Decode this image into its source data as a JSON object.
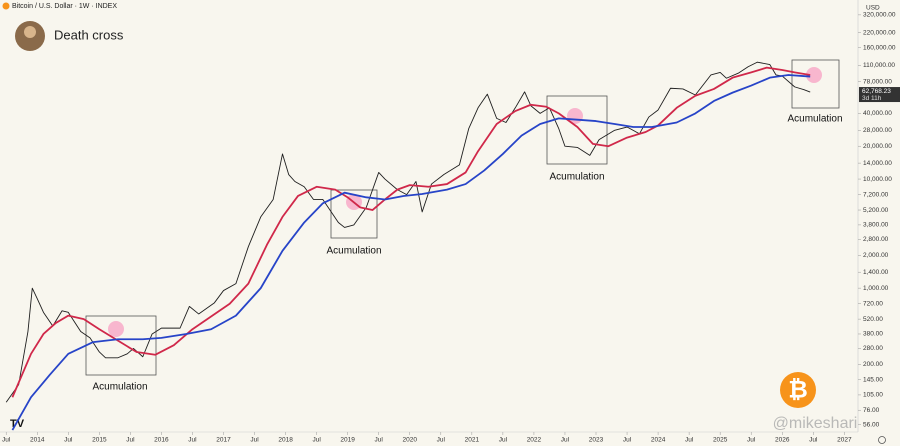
{
  "header": "Bitcoin / U.S. Dollar · 1W · INDEX",
  "chart_data": {
    "type": "line",
    "title": "Death cross",
    "log_scale": true,
    "grid": false,
    "currency": "USD",
    "last_price_label": "62,768.23",
    "countdown": "3d 11h",
    "watermark": "@mikeshari",
    "annotations": [
      "Acumulation",
      "Acumulation",
      "Acumulation",
      "Acumulation"
    ],
    "xlim": [
      2013.4,
      2027.22
    ],
    "ylim": [
      48,
      438000
    ],
    "xticks": [
      {
        "value": 2013.5,
        "label": "Jul"
      },
      {
        "value": 2014,
        "label": "2014"
      },
      {
        "value": 2014.5,
        "label": "Jul"
      },
      {
        "value": 2015,
        "label": "2015"
      },
      {
        "value": 2015.5,
        "label": "Jul"
      },
      {
        "value": 2016,
        "label": "2016"
      },
      {
        "value": 2016.5,
        "label": "Jul"
      },
      {
        "value": 2017,
        "label": "2017"
      },
      {
        "value": 2017.5,
        "label": "Jul"
      },
      {
        "value": 2018,
        "label": "2018"
      },
      {
        "value": 2018.5,
        "label": "Jul"
      },
      {
        "value": 2019,
        "label": "2019"
      },
      {
        "value": 2019.5,
        "label": "Jul"
      },
      {
        "value": 2020,
        "label": "2020"
      },
      {
        "value": 2020.5,
        "label": "Jul"
      },
      {
        "value": 2021,
        "label": "2021"
      },
      {
        "value": 2021.5,
        "label": "Jul"
      },
      {
        "value": 2022,
        "label": "2022"
      },
      {
        "value": 2022.5,
        "label": "Jul"
      },
      {
        "value": 2023,
        "label": "2023"
      },
      {
        "value": 2023.5,
        "label": "Jul"
      },
      {
        "value": 2024,
        "label": "2024"
      },
      {
        "value": 2024.5,
        "label": "Jul"
      },
      {
        "value": 2025,
        "label": "2025"
      },
      {
        "value": 2025.5,
        "label": "Jul"
      },
      {
        "value": 2026,
        "label": "2026"
      },
      {
        "value": 2026.5,
        "label": "Jul"
      },
      {
        "value": 2027,
        "label": "2027"
      }
    ],
    "yticks": [
      {
        "value": 320000,
        "label": "320,000.00"
      },
      {
        "value": 220000,
        "label": "220,000.00"
      },
      {
        "value": 160000,
        "label": "160,000.00"
      },
      {
        "value": 110000,
        "label": "110,000.00"
      },
      {
        "value": 78000,
        "label": "78,000.00"
      },
      {
        "value": 40000,
        "label": "40,000.00"
      },
      {
        "value": 28000,
        "label": "28,000.00"
      },
      {
        "value": 20000,
        "label": "20,000.00"
      },
      {
        "value": 14000,
        "label": "14,000.00"
      },
      {
        "value": 10000,
        "label": "10,000.00"
      },
      {
        "value": 7200,
        "label": "7,200.00"
      },
      {
        "value": 5200,
        "label": "5,200.00"
      },
      {
        "value": 3800,
        "label": "3,800.00"
      },
      {
        "value": 2800,
        "label": "2,800.00"
      },
      {
        "value": 2000,
        "label": "2,000.00"
      },
      {
        "value": 1400,
        "label": "1,400.00"
      },
      {
        "value": 1000,
        "label": "1,000.00"
      },
      {
        "value": 720,
        "label": "720.00"
      },
      {
        "value": 520,
        "label": "520.00"
      },
      {
        "value": 380,
        "label": "380.00"
      },
      {
        "value": 280,
        "label": "280.00"
      },
      {
        "value": 200,
        "label": "200.00"
      },
      {
        "value": 145,
        "label": "145.00"
      },
      {
        "value": 105,
        "label": "105.00"
      },
      {
        "value": 76,
        "label": "76.00"
      },
      {
        "value": 56,
        "label": "56.00"
      }
    ],
    "series": [
      {
        "color": "#1f1f1f",
        "x": [
          2013.5,
          2013.7,
          2013.85,
          2013.92,
          2014.0,
          2014.1,
          2014.25,
          2014.4,
          2014.5,
          2014.7,
          2014.85,
          2015.0,
          2015.1,
          2015.3,
          2015.45,
          2015.55,
          2015.7,
          2015.85,
          2016.0,
          2016.3,
          2016.45,
          2016.6,
          2016.85,
          2017.0,
          2017.2,
          2017.4,
          2017.6,
          2017.8,
          2017.95,
          2018.05,
          2018.15,
          2018.3,
          2018.45,
          2018.6,
          2018.85,
          2018.95,
          2019.1,
          2019.3,
          2019.5,
          2019.6,
          2019.8,
          2019.95,
          2020.1,
          2020.2,
          2020.35,
          2020.55,
          2020.8,
          2020.95,
          2021.1,
          2021.25,
          2021.4,
          2021.55,
          2021.7,
          2021.85,
          2021.95,
          2022.1,
          2022.25,
          2022.4,
          2022.5,
          2022.7,
          2022.9,
          2023.05,
          2023.3,
          2023.5,
          2023.7,
          2023.85,
          2024.0,
          2024.2,
          2024.4,
          2024.6,
          2024.85,
          2025.0,
          2025.1,
          2025.3,
          2025.45,
          2025.6,
          2025.8,
          2025.9,
          2026.0,
          2026.2,
          2026.35,
          2026.45
        ],
        "values": [
          90,
          130,
          400,
          1000,
          800,
          600,
          450,
          620,
          600,
          400,
          350,
          260,
          230,
          230,
          250,
          280,
          235,
          380,
          430,
          430,
          680,
          580,
          730,
          950,
          1100,
          2400,
          4500,
          6500,
          17000,
          11000,
          9500,
          8500,
          6500,
          6500,
          4000,
          3600,
          3800,
          5500,
          11500,
          10000,
          8000,
          7200,
          9500,
          5000,
          9000,
          11000,
          13500,
          29000,
          45000,
          60000,
          36000,
          33000,
          45000,
          63000,
          47000,
          40000,
          45000,
          29000,
          20000,
          19500,
          16500,
          23000,
          28000,
          30000,
          26000,
          37000,
          43000,
          68000,
          67000,
          59000,
          90000,
          95000,
          84000,
          94000,
          107000,
          118000,
          112000,
          90000,
          88000,
          70000,
          66000,
          62768.23
        ]
      },
      {
        "color": "#d0284a",
        "x": [
          2013.6,
          2013.9,
          2014.1,
          2014.3,
          2014.5,
          2014.75,
          2015.0,
          2015.3,
          2015.6,
          2015.9,
          2016.2,
          2016.5,
          2016.8,
          2017.1,
          2017.4,
          2017.7,
          2017.95,
          2018.2,
          2018.5,
          2018.8,
          2019.0,
          2019.2,
          2019.4,
          2019.6,
          2019.8,
          2020.0,
          2020.3,
          2020.6,
          2020.9,
          2021.1,
          2021.4,
          2021.7,
          2021.95,
          2022.2,
          2022.4,
          2022.7,
          2022.95,
          2023.2,
          2023.5,
          2023.8,
          2024.0,
          2024.3,
          2024.6,
          2024.9,
          2025.2,
          2025.5,
          2025.75,
          2026.0,
          2026.2,
          2026.45
        ],
        "values": [
          100,
          250,
          380,
          480,
          560,
          520,
          420,
          330,
          260,
          245,
          300,
          420,
          550,
          720,
          1100,
          2500,
          4500,
          7000,
          8500,
          8000,
          6800,
          5500,
          5200,
          6500,
          8000,
          8800,
          8500,
          9000,
          11500,
          18000,
          32000,
          42000,
          48000,
          46000,
          40000,
          30000,
          21000,
          20000,
          24000,
          27000,
          31000,
          45000,
          58000,
          67000,
          85000,
          95000,
          105000,
          100000,
          95000,
          90000
        ]
      },
      {
        "color": "#2744c8",
        "x": [
          2013.6,
          2013.9,
          2014.2,
          2014.5,
          2014.9,
          2015.3,
          2015.7,
          2016.0,
          2016.4,
          2016.8,
          2017.2,
          2017.6,
          2017.95,
          2018.3,
          2018.6,
          2018.95,
          2019.3,
          2019.6,
          2019.9,
          2020.2,
          2020.6,
          2020.9,
          2021.2,
          2021.5,
          2021.8,
          2022.1,
          2022.4,
          2022.7,
          2023.0,
          2023.3,
          2023.6,
          2023.9,
          2024.3,
          2024.6,
          2024.9,
          2025.2,
          2025.5,
          2025.8,
          2026.1,
          2026.45
        ],
        "values": [
          50,
          100,
          160,
          250,
          320,
          340,
          340,
          350,
          380,
          420,
          560,
          1000,
          2200,
          4000,
          6000,
          7500,
          6800,
          6500,
          7000,
          7300,
          8000,
          9000,
          12000,
          17000,
          25000,
          32000,
          36000,
          35000,
          34000,
          32000,
          30000,
          30000,
          33000,
          40000,
          52000,
          62000,
          72000,
          85000,
          90000,
          87000
        ]
      }
    ]
  }
}
